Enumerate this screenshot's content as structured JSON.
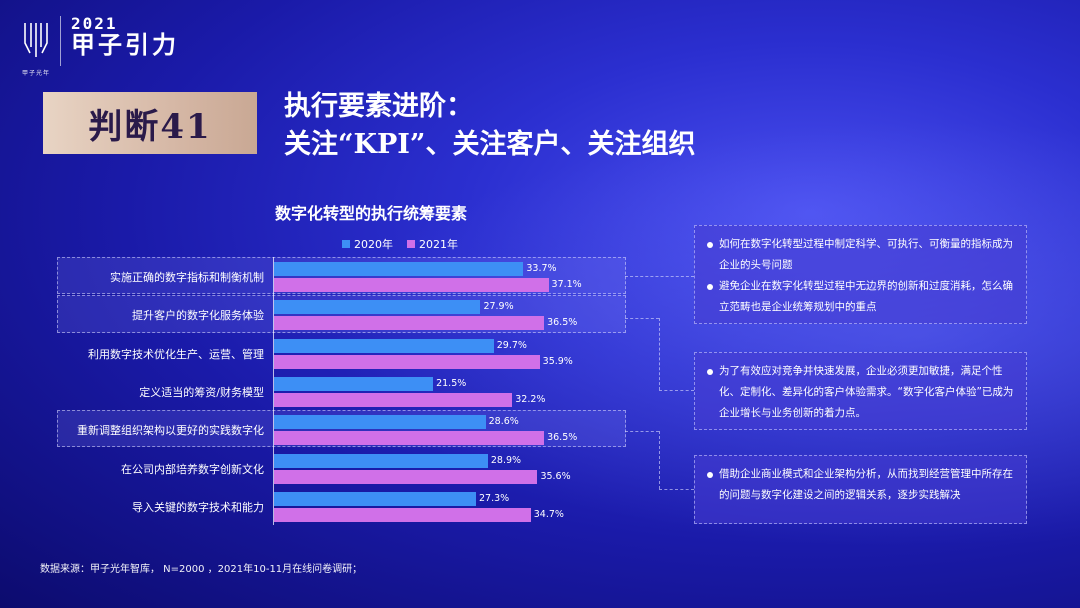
{
  "brand": {
    "logo_text": "甲子光年",
    "year": "2021",
    "name": "甲子引力"
  },
  "badge": "判断41",
  "headline": {
    "line1": "执行要素进阶：",
    "line2": "关注“KPI”、关注客户、关注组织"
  },
  "chart_data": {
    "type": "bar",
    "orientation": "horizontal",
    "title": "数字化转型的执行统筹要素",
    "categories": [
      "实施正确的数字指标和制衡机制",
      "提升客户的数字化服务体验",
      "利用数字技术优化生产、运营、管理",
      "定义适当的筹资/财务模型",
      "重新调整组织架构以更好的实践数字化",
      "在公司内部培养数字创新文化",
      "导入关键的数字技术和能力"
    ],
    "series": [
      {
        "name": "2020年",
        "values": [
          33.7,
          27.9,
          29.7,
          21.5,
          28.6,
          28.9,
          27.3
        ],
        "color": "#3d8ff5"
      },
      {
        "name": "2021年",
        "values": [
          37.1,
          36.5,
          35.9,
          32.2,
          36.5,
          35.6,
          34.7
        ],
        "color": "#d070e8"
      }
    ],
    "value_suffix": "%",
    "highlighted_categories": [
      0,
      1,
      4
    ],
    "legend_position": "top",
    "xlim": [
      0,
      40
    ]
  },
  "panels": [
    {
      "bullets": [
        "如何在数字化转型过程中制定科学、可执行、可衡量的指标成为企业的头号问题",
        "避免企业在数字化转型过程中无边界的创新和过度消耗，怎么确立范畴也是企业统筹规划中的重点"
      ]
    },
    {
      "bullets": [
        "为了有效应对竞争并快速发展，企业必须更加敏捷，满足个性化、定制化、差异化的客户体验需求。“数字化客户体验”已成为企业增长与业务创新的着力点。"
      ]
    },
    {
      "bullets": [
        "借助企业商业模式和企业架构分析，从而找到经营管理中所存在的问题与数字化建设之间的逻辑关系，逐步实践解决"
      ]
    }
  ],
  "source": "数据来源：甲子光年智库， N=2000 ，2021年10-11月在线问卷调研；"
}
